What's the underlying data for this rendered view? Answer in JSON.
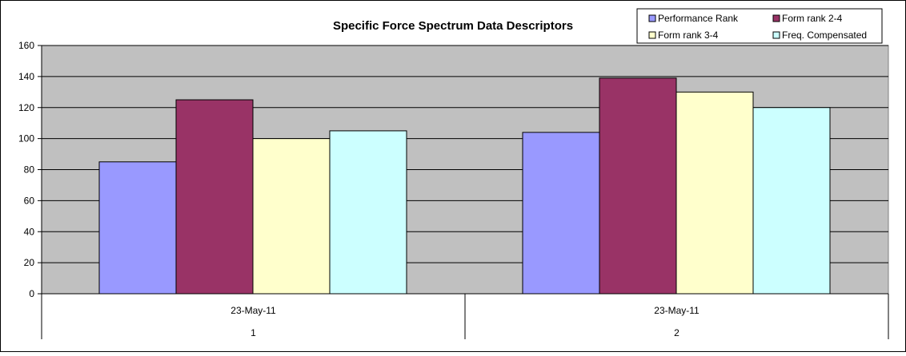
{
  "chart_data": {
    "type": "bar",
    "title": "Specific Force Spectrum Data Descriptors",
    "xlabel": "",
    "ylabel": "",
    "ylim": [
      0,
      160
    ],
    "yticks": [
      0,
      20,
      40,
      60,
      80,
      100,
      120,
      140,
      160
    ],
    "grid": true,
    "legend_position": "top-right",
    "categories": [
      {
        "date": "23-May-11",
        "index": "1"
      },
      {
        "date": "23-May-11",
        "index": "2"
      }
    ],
    "series": [
      {
        "name": "Performance Rank",
        "color": "#9999ff",
        "values": [
          85,
          104
        ]
      },
      {
        "name": "Form rank 2-4",
        "color": "#993366",
        "values": [
          125,
          139
        ]
      },
      {
        "name": "Form rank 3-4",
        "color": "#ffffcc",
        "values": [
          100,
          130
        ]
      },
      {
        "name": "Freq. Compensated",
        "color": "#ccffff",
        "values": [
          105,
          120
        ]
      }
    ],
    "plot_background": "#c0c0c0"
  }
}
